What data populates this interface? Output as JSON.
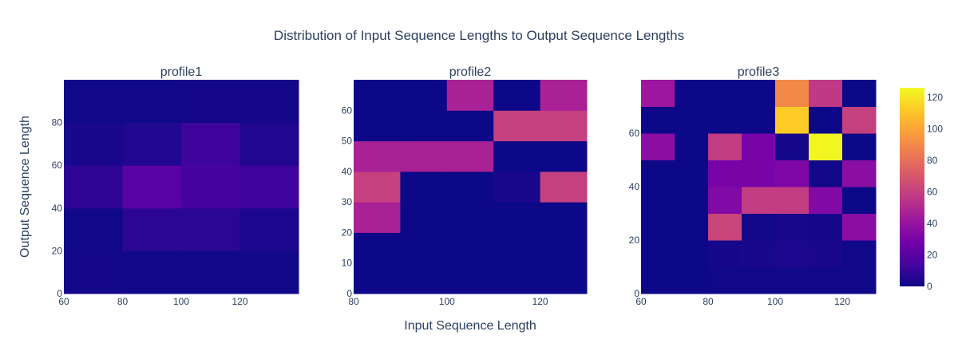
{
  "chart_data": {
    "title": "Distribution of Input Sequence Lengths to Output Sequence Lengths",
    "xlabel": "Input Sequence Length",
    "ylabel": "Output Sequence Length",
    "type": "heatmap",
    "colorscale": "Plasma",
    "colorscale_stops": [
      "#0d0887",
      "#46039f",
      "#7201a8",
      "#9c179e",
      "#bd3786",
      "#d8576b",
      "#ed7953",
      "#fb9f3a",
      "#fdca26",
      "#f0f921"
    ],
    "color_range": [
      0,
      126
    ],
    "colorbar_ticks": [
      0,
      20,
      40,
      60,
      80,
      100,
      120
    ],
    "subplots": [
      {
        "title": "profile1",
        "x_edges": [
          60,
          80,
          100,
          120,
          140
        ],
        "y_edges": [
          0,
          20,
          40,
          60,
          80,
          100
        ],
        "xlim": [
          60,
          140
        ],
        "ylim": [
          0,
          100
        ],
        "x_ticks": [
          60,
          80,
          100,
          120
        ],
        "y_ticks": [
          0,
          20,
          40,
          60,
          80
        ],
        "z": [
          [
            2,
            1,
            1,
            1
          ],
          [
            1,
            7,
            7,
            4
          ],
          [
            8,
            20,
            14,
            12
          ],
          [
            3,
            5,
            12,
            5
          ],
          [
            1,
            1,
            2,
            2
          ]
        ]
      },
      {
        "title": "profile2",
        "x_edges": [
          80,
          90,
          100,
          110,
          120,
          130
        ],
        "y_edges": [
          0,
          10,
          20,
          30,
          40,
          50,
          60,
          70
        ],
        "xlim": [
          80,
          130
        ],
        "ylim": [
          0,
          70
        ],
        "x_ticks": [
          80,
          100,
          120
        ],
        "y_ticks": [
          0,
          10,
          20,
          30,
          40,
          50,
          60
        ],
        "z": [
          [
            0,
            0,
            0,
            0,
            0
          ],
          [
            0,
            0,
            0,
            0,
            0
          ],
          [
            47,
            0,
            0,
            0,
            0
          ],
          [
            60,
            0,
            0,
            3,
            60
          ],
          [
            47,
            47,
            47,
            0,
            0
          ],
          [
            0,
            0,
            0,
            60,
            60
          ],
          [
            0,
            0,
            47,
            0,
            47
          ]
        ]
      },
      {
        "title": "profile3",
        "x_edges": [
          60,
          70,
          80,
          90,
          100,
          110,
          120,
          130
        ],
        "y_edges": [
          0,
          10,
          20,
          30,
          40,
          50,
          60,
          70,
          80
        ],
        "xlim": [
          60,
          130
        ],
        "ylim": [
          0,
          80
        ],
        "x_ticks": [
          60,
          80,
          100,
          120
        ],
        "y_ticks": [
          0,
          20,
          40,
          60
        ],
        "z": [
          [
            0,
            0,
            1,
            1,
            1,
            1,
            1
          ],
          [
            0,
            0,
            2,
            3,
            4,
            3,
            1
          ],
          [
            0,
            0,
            62,
            1,
            3,
            2,
            36
          ],
          [
            0,
            0,
            33,
            58,
            58,
            33,
            0
          ],
          [
            0,
            0,
            30,
            30,
            32,
            1,
            36
          ],
          [
            36,
            0,
            58,
            30,
            2,
            125,
            0
          ],
          [
            0,
            0,
            0,
            0,
            112,
            0,
            60
          ],
          [
            42,
            0,
            0,
            0,
            90,
            57,
            0
          ]
        ]
      }
    ]
  }
}
